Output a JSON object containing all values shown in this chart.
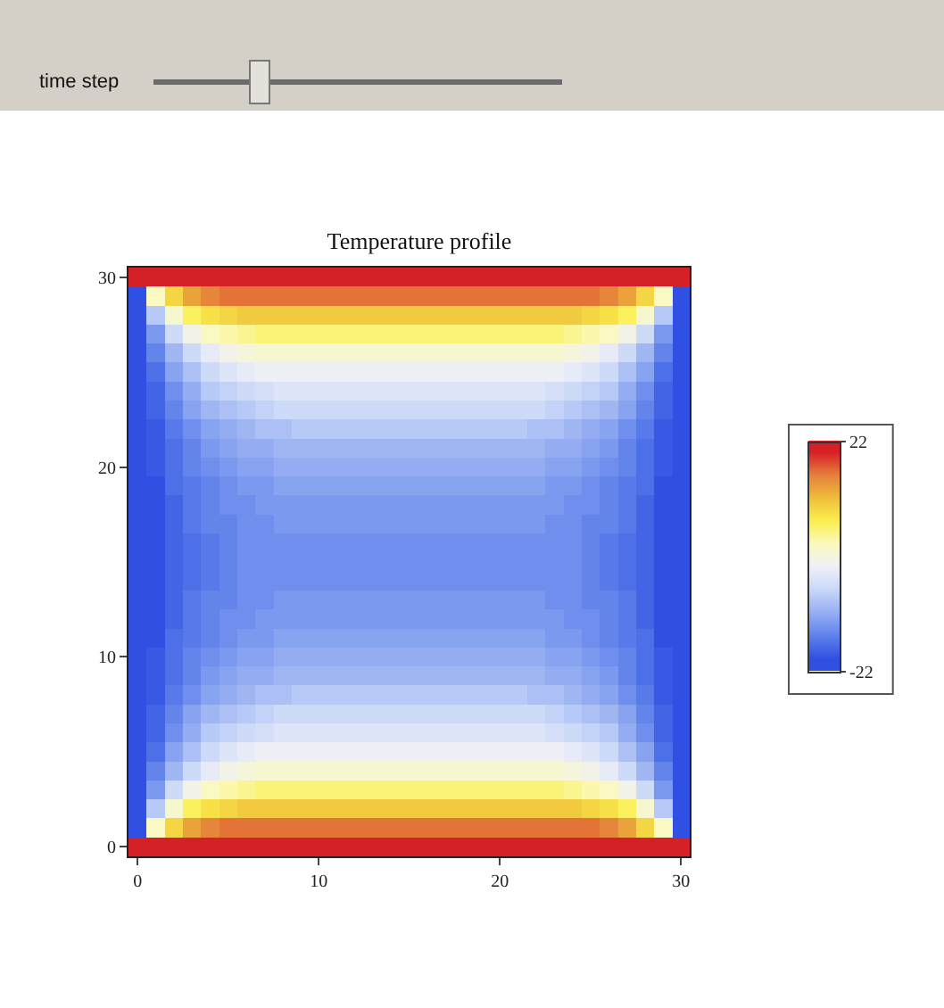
{
  "chart_data": {
    "type": "heatmap",
    "title": "Temperature profile",
    "annotations": [
      "time step"
    ],
    "x": [
      0,
      1,
      2,
      3,
      4,
      5,
      6,
      7,
      8,
      9,
      10,
      11,
      12,
      13,
      14,
      15,
      16,
      17,
      18,
      19,
      20,
      21,
      22,
      23,
      24,
      25,
      26,
      27,
      28,
      29,
      30
    ],
    "y": [
      30,
      29,
      28,
      27,
      26,
      25,
      24,
      23,
      22,
      21,
      20,
      19,
      18,
      17,
      16,
      15,
      14,
      13,
      12,
      11,
      10,
      9,
      8,
      7,
      6,
      5,
      4,
      3,
      2,
      1,
      0
    ],
    "xlim": [
      -0.5,
      30.5
    ],
    "ylim": [
      -0.5,
      30.5
    ],
    "xticks": [
      0,
      10,
      20,
      30
    ],
    "yticks": [
      0,
      10,
      20,
      30
    ],
    "clim": [
      -22,
      22
    ],
    "cticks": [
      22,
      -22
    ],
    "colors": [
      "#2f50e2",
      "#5e80ea",
      "#94adf2",
      "#c8d6f8",
      "#eef0f8",
      "#fbf9c0",
      "#fbef4e",
      "#efbf3a",
      "#e5803a",
      "#d62027"
    ],
    "cells": [
      [
        22,
        22,
        22,
        22,
        22,
        22,
        22,
        22,
        22,
        22,
        22,
        22,
        22,
        22,
        22,
        22,
        22,
        22,
        22,
        22,
        22,
        22,
        22,
        22,
        22,
        22,
        22,
        22,
        22,
        22,
        22
      ],
      [
        -22,
        2,
        9,
        13,
        15,
        16,
        16,
        16,
        16,
        16,
        16,
        16,
        16,
        16,
        16,
        16,
        16,
        16,
        16,
        16,
        16,
        16,
        16,
        16,
        16,
        16,
        15,
        13,
        9,
        2,
        -22
      ],
      [
        -22,
        -8,
        1,
        6,
        8,
        9,
        10,
        10,
        10,
        10,
        10,
        10,
        10,
        10,
        10,
        10,
        10,
        10,
        10,
        10,
        10,
        10,
        10,
        10,
        10,
        9,
        8,
        6,
        1,
        -8,
        -22
      ],
      [
        -22,
        -13,
        -6,
        -1,
        2,
        3,
        4,
        5,
        5,
        5,
        5,
        5,
        5,
        5,
        5,
        5,
        5,
        5,
        5,
        5,
        5,
        5,
        5,
        5,
        4,
        3,
        2,
        -1,
        -6,
        -13,
        -22
      ],
      [
        -22,
        -15,
        -10,
        -6,
        -3,
        -1,
        0,
        1,
        1,
        1,
        1,
        1,
        1,
        1,
        1,
        1,
        1,
        1,
        1,
        1,
        1,
        1,
        1,
        1,
        0,
        -1,
        -3,
        -6,
        -10,
        -15,
        -22
      ],
      [
        -22,
        -17,
        -12,
        -9,
        -6,
        -4,
        -3,
        -2,
        -2,
        -2,
        -2,
        -2,
        -2,
        -2,
        -2,
        -2,
        -2,
        -2,
        -2,
        -2,
        -2,
        -2,
        -2,
        -2,
        -3,
        -4,
        -6,
        -9,
        -12,
        -17,
        -22
      ],
      [
        -22,
        -18,
        -14,
        -11,
        -8,
        -7,
        -6,
        -5,
        -4,
        -4,
        -4,
        -4,
        -4,
        -4,
        -4,
        -4,
        -4,
        -4,
        -4,
        -4,
        -4,
        -4,
        -4,
        -5,
        -6,
        -7,
        -8,
        -11,
        -14,
        -18,
        -22
      ],
      [
        -22,
        -18,
        -15,
        -12,
        -10,
        -9,
        -8,
        -7,
        -6,
        -6,
        -6,
        -6,
        -6,
        -6,
        -6,
        -6,
        -6,
        -6,
        -6,
        -6,
        -6,
        -6,
        -6,
        -7,
        -8,
        -9,
        -10,
        -12,
        -15,
        -18,
        -22
      ],
      [
        -22,
        -19,
        -16,
        -14,
        -12,
        -11,
        -10,
        -9,
        -9,
        -8,
        -8,
        -8,
        -8,
        -8,
        -8,
        -8,
        -8,
        -8,
        -8,
        -8,
        -8,
        -8,
        -9,
        -9,
        -10,
        -11,
        -12,
        -14,
        -16,
        -19,
        -22
      ],
      [
        -22,
        -19,
        -17,
        -15,
        -13,
        -12,
        -11,
        -11,
        -10,
        -10,
        -10,
        -10,
        -10,
        -10,
        -10,
        -10,
        -10,
        -10,
        -10,
        -10,
        -10,
        -10,
        -10,
        -11,
        -11,
        -12,
        -13,
        -15,
        -17,
        -19,
        -22
      ],
      [
        -22,
        -19,
        -17,
        -15,
        -14,
        -13,
        -12,
        -12,
        -11,
        -11,
        -11,
        -11,
        -11,
        -11,
        -11,
        -11,
        -11,
        -11,
        -11,
        -11,
        -11,
        -11,
        -11,
        -12,
        -12,
        -13,
        -14,
        -15,
        -17,
        -19,
        -22
      ],
      [
        -22,
        -20,
        -17,
        -16,
        -15,
        -14,
        -13,
        -13,
        -12,
        -12,
        -12,
        -12,
        -12,
        -12,
        -12,
        -12,
        -12,
        -12,
        -12,
        -12,
        -12,
        -12,
        -12,
        -13,
        -13,
        -14,
        -15,
        -16,
        -17,
        -20,
        -22
      ],
      [
        -22,
        -20,
        -18,
        -16,
        -15,
        -14,
        -14,
        -13,
        -13,
        -13,
        -13,
        -13,
        -13,
        -13,
        -13,
        -13,
        -13,
        -13,
        -13,
        -13,
        -13,
        -13,
        -13,
        -13,
        -14,
        -14,
        -15,
        -16,
        -18,
        -20,
        -22
      ],
      [
        -22,
        -20,
        -18,
        -16,
        -15,
        -15,
        -14,
        -14,
        -13,
        -13,
        -13,
        -13,
        -13,
        -13,
        -13,
        -13,
        -13,
        -13,
        -13,
        -13,
        -13,
        -13,
        -13,
        -14,
        -14,
        -15,
        -15,
        -16,
        -18,
        -20,
        -22
      ],
      [
        -22,
        -20,
        -18,
        -17,
        -16,
        -15,
        -14,
        -14,
        -14,
        -14,
        -14,
        -14,
        -14,
        -14,
        -14,
        -14,
        -14,
        -14,
        -14,
        -14,
        -14,
        -14,
        -14,
        -14,
        -14,
        -15,
        -16,
        -17,
        -18,
        -20,
        -22
      ],
      [
        -22,
        -20,
        -18,
        -17,
        -16,
        -15,
        -14,
        -14,
        -14,
        -14,
        -14,
        -14,
        -14,
        -14,
        -14,
        -14,
        -14,
        -14,
        -14,
        -14,
        -14,
        -14,
        -14,
        -14,
        -14,
        -15,
        -16,
        -17,
        -18,
        -20,
        -22
      ],
      [
        -22,
        -20,
        -18,
        -17,
        -16,
        -15,
        -14,
        -14,
        -14,
        -14,
        -14,
        -14,
        -14,
        -14,
        -14,
        -14,
        -14,
        -14,
        -14,
        -14,
        -14,
        -14,
        -14,
        -14,
        -14,
        -15,
        -16,
        -17,
        -18,
        -20,
        -22
      ],
      [
        -22,
        -20,
        -18,
        -16,
        -15,
        -15,
        -14,
        -14,
        -13,
        -13,
        -13,
        -13,
        -13,
        -13,
        -13,
        -13,
        -13,
        -13,
        -13,
        -13,
        -13,
        -13,
        -13,
        -14,
        -14,
        -15,
        -15,
        -16,
        -18,
        -20,
        -22
      ],
      [
        -22,
        -20,
        -18,
        -16,
        -15,
        -14,
        -14,
        -13,
        -13,
        -13,
        -13,
        -13,
        -13,
        -13,
        -13,
        -13,
        -13,
        -13,
        -13,
        -13,
        -13,
        -13,
        -13,
        -13,
        -14,
        -14,
        -15,
        -16,
        -18,
        -20,
        -22
      ],
      [
        -22,
        -20,
        -17,
        -16,
        -15,
        -14,
        -13,
        -13,
        -12,
        -12,
        -12,
        -12,
        -12,
        -12,
        -12,
        -12,
        -12,
        -12,
        -12,
        -12,
        -12,
        -12,
        -12,
        -13,
        -13,
        -14,
        -15,
        -16,
        -17,
        -20,
        -22
      ],
      [
        -22,
        -19,
        -17,
        -15,
        -14,
        -13,
        -12,
        -12,
        -11,
        -11,
        -11,
        -11,
        -11,
        -11,
        -11,
        -11,
        -11,
        -11,
        -11,
        -11,
        -11,
        -11,
        -11,
        -12,
        -12,
        -13,
        -14,
        -15,
        -17,
        -19,
        -22
      ],
      [
        -22,
        -19,
        -17,
        -15,
        -13,
        -12,
        -11,
        -11,
        -10,
        -10,
        -10,
        -10,
        -10,
        -10,
        -10,
        -10,
        -10,
        -10,
        -10,
        -10,
        -10,
        -10,
        -10,
        -11,
        -11,
        -12,
        -13,
        -15,
        -17,
        -19,
        -22
      ],
      [
        -22,
        -19,
        -16,
        -14,
        -12,
        -11,
        -10,
        -9,
        -9,
        -8,
        -8,
        -8,
        -8,
        -8,
        -8,
        -8,
        -8,
        -8,
        -8,
        -8,
        -8,
        -8,
        -9,
        -9,
        -10,
        -11,
        -12,
        -14,
        -16,
        -19,
        -22
      ],
      [
        -22,
        -18,
        -15,
        -12,
        -10,
        -9,
        -8,
        -7,
        -6,
        -6,
        -6,
        -6,
        -6,
        -6,
        -6,
        -6,
        -6,
        -6,
        -6,
        -6,
        -6,
        -6,
        -6,
        -7,
        -8,
        -9,
        -10,
        -12,
        -15,
        -18,
        -22
      ],
      [
        -22,
        -18,
        -14,
        -11,
        -8,
        -7,
        -6,
        -5,
        -4,
        -4,
        -4,
        -4,
        -4,
        -4,
        -4,
        -4,
        -4,
        -4,
        -4,
        -4,
        -4,
        -4,
        -4,
        -5,
        -6,
        -7,
        -8,
        -11,
        -14,
        -18,
        -22
      ],
      [
        -22,
        -17,
        -12,
        -9,
        -6,
        -4,
        -3,
        -2,
        -2,
        -2,
        -2,
        -2,
        -2,
        -2,
        -2,
        -2,
        -2,
        -2,
        -2,
        -2,
        -2,
        -2,
        -2,
        -2,
        -3,
        -4,
        -6,
        -9,
        -12,
        -17,
        -22
      ],
      [
        -22,
        -15,
        -10,
        -6,
        -3,
        -1,
        0,
        1,
        1,
        1,
        1,
        1,
        1,
        1,
        1,
        1,
        1,
        1,
        1,
        1,
        1,
        1,
        1,
        1,
        0,
        -1,
        -3,
        -6,
        -10,
        -15,
        -22
      ],
      [
        -22,
        -13,
        -6,
        -1,
        2,
        3,
        4,
        5,
        5,
        5,
        5,
        5,
        5,
        5,
        5,
        5,
        5,
        5,
        5,
        5,
        5,
        5,
        5,
        5,
        4,
        3,
        2,
        -1,
        -6,
        -13,
        -22
      ],
      [
        -22,
        -8,
        1,
        6,
        8,
        9,
        10,
        10,
        10,
        10,
        10,
        10,
        10,
        10,
        10,
        10,
        10,
        10,
        10,
        10,
        10,
        10,
        10,
        10,
        10,
        9,
        8,
        6,
        1,
        -8,
        -22
      ],
      [
        -22,
        2,
        9,
        13,
        15,
        16,
        16,
        16,
        16,
        16,
        16,
        16,
        16,
        16,
        16,
        16,
        16,
        16,
        16,
        16,
        16,
        16,
        16,
        16,
        16,
        16,
        15,
        13,
        9,
        2,
        -22
      ],
      [
        22,
        22,
        22,
        22,
        22,
        22,
        22,
        22,
        22,
        22,
        22,
        22,
        22,
        22,
        22,
        22,
        22,
        22,
        22,
        22,
        22,
        22,
        22,
        22,
        22,
        22,
        22,
        22,
        22,
        22,
        22
      ]
    ]
  }
}
